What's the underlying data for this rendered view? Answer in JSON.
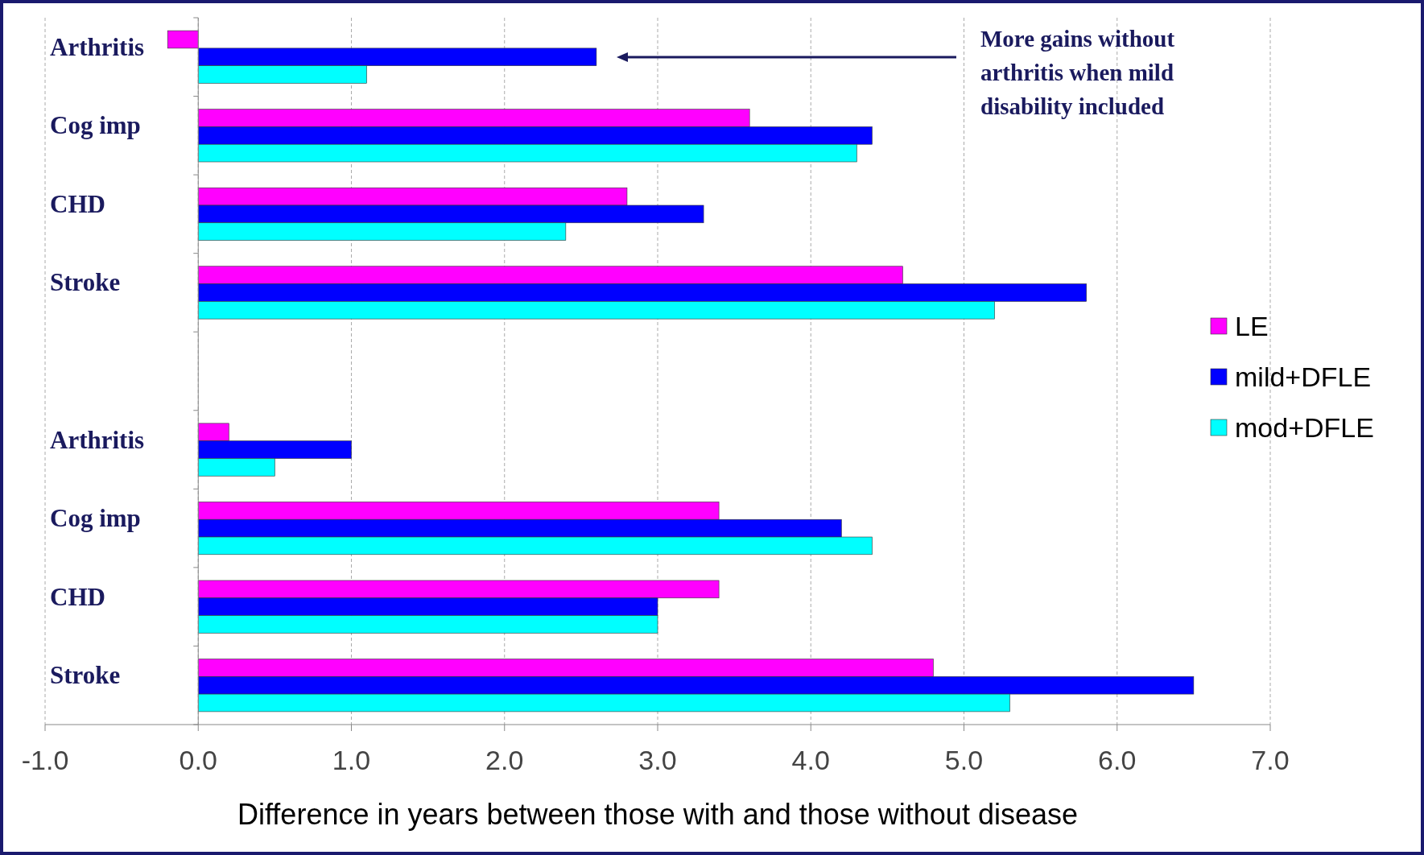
{
  "chart_data": {
    "type": "bar",
    "orientation": "horizontal",
    "categories": [
      "Arthritis",
      "Cog imp",
      "CHD",
      "Stroke",
      null,
      "Arthritis",
      "Cog imp",
      "CHD",
      "Stroke"
    ],
    "series": [
      {
        "name": "LE",
        "color": "#ff00ff",
        "values": [
          -0.2,
          3.6,
          2.8,
          4.6,
          null,
          0.2,
          3.4,
          3.4,
          4.8
        ]
      },
      {
        "name": "mild+DFLE",
        "color": "#0000ff",
        "values": [
          2.6,
          4.4,
          3.3,
          5.8,
          null,
          1.0,
          4.2,
          3.0,
          6.5
        ]
      },
      {
        "name": "mod+DFLE",
        "color": "#00ffff",
        "values": [
          1.1,
          4.3,
          2.4,
          5.2,
          null,
          0.5,
          4.4,
          3.0,
          5.3
        ]
      }
    ],
    "xlim": [
      -1,
      7
    ],
    "xticks": [
      {
        "value": -1,
        "label": "-1.0"
      },
      {
        "value": 0,
        "label": "0.0"
      },
      {
        "value": 1,
        "label": "1.0"
      },
      {
        "value": 2,
        "label": "2.0"
      },
      {
        "value": 3,
        "label": "3.0"
      },
      {
        "value": 4,
        "label": "4.0"
      },
      {
        "value": 5,
        "label": "5.0"
      },
      {
        "value": 6,
        "label": "6.0"
      },
      {
        "value": 7,
        "label": "7.0"
      }
    ],
    "xlabel": "Difference in years between those with and those without disease",
    "annotations": [
      "More gains without arthritis when mild disability included"
    ],
    "grid": "x",
    "legend": "right"
  }
}
